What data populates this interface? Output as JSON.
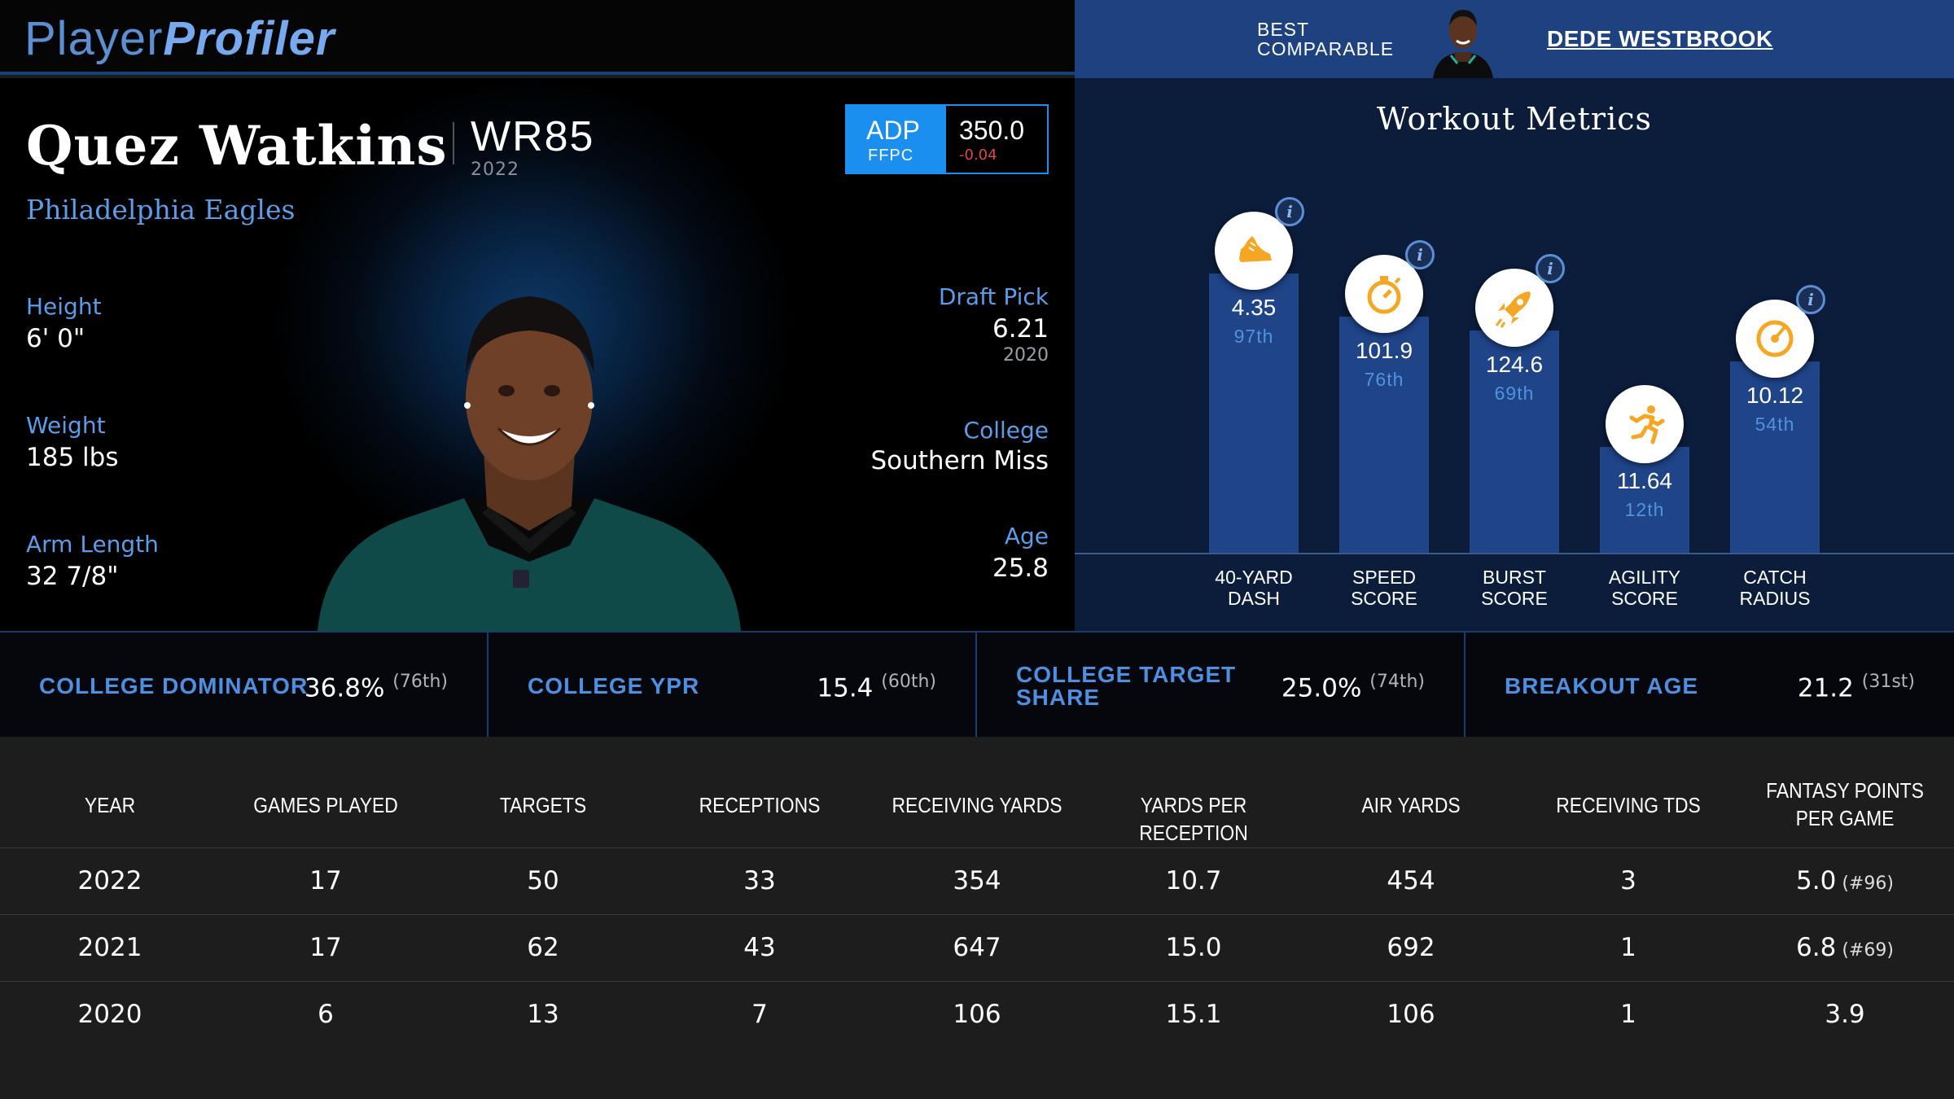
{
  "brand": {
    "part1": "Player",
    "part2": "Profiler"
  },
  "comparable": {
    "label_line1": "BEST",
    "label_line2": "COMPARABLE",
    "name": "DEDE WESTBROOK"
  },
  "player": {
    "name": "Quez Watkins",
    "position": "WR85",
    "season": "2022",
    "team": "Philadelphia Eagles",
    "adp": {
      "label": "ADP",
      "source": "FFPC",
      "value": "350.0",
      "change": "-0.04"
    },
    "left_stats": [
      {
        "label": "Height",
        "value": "6' 0\""
      },
      {
        "label": "Weight",
        "value": "185 lbs"
      },
      {
        "label": "Arm Length",
        "value": "32 7/8\""
      }
    ],
    "draft": {
      "label": "Draft Pick",
      "value": "6.21",
      "year": "2020"
    },
    "college": {
      "label": "College",
      "value": "Southern Miss"
    },
    "age": {
      "label": "Age",
      "value": "25.8"
    }
  },
  "workout": {
    "title": "Workout Metrics",
    "metrics": [
      {
        "label_line1": "40-YARD",
        "label_line2": "DASH",
        "value": "4.35",
        "percentile": "97th",
        "pct": 97,
        "icon": "shoe-icon"
      },
      {
        "label_line1": "SPEED",
        "label_line2": "SCORE",
        "value": "101.9",
        "percentile": "76th",
        "pct": 76,
        "icon": "stopwatch-icon"
      },
      {
        "label_line1": "BURST",
        "label_line2": "SCORE",
        "value": "124.6",
        "percentile": "69th",
        "pct": 69,
        "icon": "rocket-icon"
      },
      {
        "label_line1": "AGILITY",
        "label_line2": "SCORE",
        "value": "11.64",
        "percentile": "12th",
        "pct": 12,
        "icon": "runner-icon"
      },
      {
        "label_line1": "CATCH",
        "label_line2": "RADIUS",
        "value": "10.12",
        "percentile": "54th",
        "pct": 54,
        "icon": "target-icon"
      }
    ]
  },
  "college_stats": [
    {
      "label": "COLLEGE DOMINATOR",
      "value": "36.8%",
      "rank": "(76th)"
    },
    {
      "label": "COLLEGE YPR",
      "value": "15.4",
      "rank": "(60th)"
    },
    {
      "label_line1": "COLLEGE TARGET",
      "label_line2": "SHARE",
      "value": "25.0%",
      "rank": "(74th)"
    },
    {
      "label": "BREAKOUT AGE",
      "value": "21.2",
      "rank": "(31st)"
    }
  ],
  "table": {
    "headers": [
      "YEAR",
      "GAMES PLAYED",
      "TARGETS",
      "RECEPTIONS",
      "RECEIVING YARDS",
      "YARDS PER RECEPTION",
      "AIR YARDS",
      "RECEIVING TDS",
      "FANTASY POINTS PER GAME"
    ],
    "rows": [
      {
        "year": "2022",
        "games": "17",
        "targets": "50",
        "receptions": "33",
        "yards": "354",
        "ypr": "10.7",
        "air": "454",
        "tds": "3",
        "fppg": "5.0",
        "rank": "(#96)"
      },
      {
        "year": "2021",
        "games": "17",
        "targets": "62",
        "receptions": "43",
        "yards": "647",
        "ypr": "15.0",
        "air": "692",
        "tds": "1",
        "fppg": "6.8",
        "rank": "(#69)"
      },
      {
        "year": "2020",
        "games": "6",
        "targets": "13",
        "receptions": "7",
        "yards": "106",
        "ypr": "15.1",
        "air": "106",
        "tds": "1",
        "fppg": "3.9",
        "rank": ""
      }
    ]
  },
  "colors": {
    "accent": "#4d8fe0",
    "bar": "#1f4488",
    "icon": "#f5a623",
    "adp": "#1a8ff0",
    "negative": "#e04848"
  }
}
